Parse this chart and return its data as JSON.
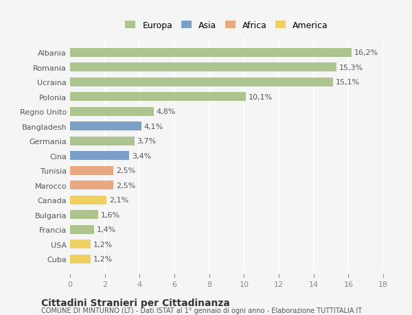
{
  "categories": [
    "Cuba",
    "USA",
    "Francia",
    "Bulgaria",
    "Canada",
    "Marocco",
    "Tunisia",
    "Cina",
    "Germania",
    "Bangladesh",
    "Regno Unito",
    "Polonia",
    "Ucraina",
    "Romania",
    "Albania"
  ],
  "values": [
    1.2,
    1.2,
    1.4,
    1.6,
    2.1,
    2.5,
    2.5,
    3.4,
    3.7,
    4.1,
    4.8,
    10.1,
    15.1,
    15.3,
    16.2
  ],
  "labels": [
    "1,2%",
    "1,2%",
    "1,4%",
    "1,6%",
    "2,1%",
    "2,5%",
    "2,5%",
    "3,4%",
    "3,7%",
    "4,1%",
    "4,8%",
    "10,1%",
    "15,1%",
    "15,3%",
    "16,2%"
  ],
  "continents": [
    "America",
    "America",
    "Europa",
    "Europa",
    "America",
    "Africa",
    "Africa",
    "Asia",
    "Europa",
    "Asia",
    "Europa",
    "Europa",
    "Europa",
    "Europa",
    "Europa"
  ],
  "colors": {
    "Europa": "#aec48f",
    "Asia": "#7b9fc7",
    "Africa": "#e8a882",
    "America": "#f0d060"
  },
  "background_color": "#f5f5f5",
  "title": "Cittadini Stranieri per Cittadinanza",
  "subtitle": "COMUNE DI MINTURNO (LT) - Dati ISTAT al 1° gennaio di ogni anno - Elaborazione TUTTITALIA.IT",
  "xlim": [
    0,
    18
  ],
  "xticks": [
    0,
    2,
    4,
    6,
    8,
    10,
    12,
    14,
    16,
    18
  ],
  "legend_labels": [
    "Europa",
    "Asia",
    "Africa",
    "America"
  ]
}
